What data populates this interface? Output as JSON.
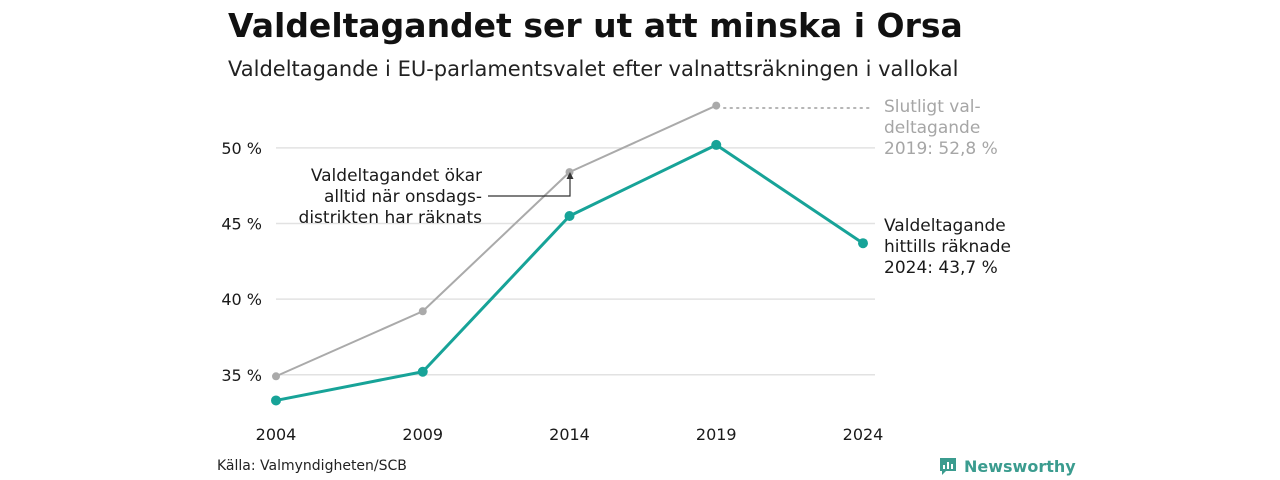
{
  "title": "Valdeltagandet ser ut att minska i Orsa",
  "subtitle": "Valdeltagande i EU-parlamentsvalet efter valnattsräkningen i vallokal",
  "source": "Källa: Valmyndigheten/SCB",
  "brand": {
    "name": "Newsworthy",
    "icon": "newsworthy-logo-icon"
  },
  "annotations": {
    "final_turnout": [
      "Slutligt val-",
      "deltagande",
      "2019: 52,8 %"
    ],
    "counted_turnout": [
      "Valdeltagande",
      "hittills räknade",
      "2024: 43,7 %"
    ],
    "wednesday_note": [
      "Valdeltagandet ökar",
      "alltid när onsdags-",
      "distrikten har räknats"
    ]
  },
  "colors": {
    "counted": "#17a398",
    "final": "#aaaaaa",
    "grid": "#e2e2e2",
    "brand": "#3b9c8f"
  },
  "chart_data": {
    "type": "line",
    "title": "Valdeltagandet ser ut att minska i Orsa",
    "subtitle": "Valdeltagande i EU-parlamentsvalet efter valnattsräkningen i vallokal",
    "xlabel": "",
    "ylabel": "",
    "x": [
      "2004",
      "2009",
      "2014",
      "2019",
      "2024"
    ],
    "y_ticks": [
      35,
      40,
      45,
      50
    ],
    "y_tick_labels": [
      "35 %",
      "40 %",
      "45 %",
      "50 %"
    ],
    "ylim": [
      33,
      53.5
    ],
    "grid": true,
    "legend": "none",
    "series": [
      {
        "key": "final",
        "values": [
          34.9,
          39.2,
          48.4,
          52.8,
          null
        ]
      },
      {
        "key": "counted",
        "values": [
          33.3,
          35.2,
          45.5,
          50.2,
          43.7
        ]
      }
    ]
  }
}
